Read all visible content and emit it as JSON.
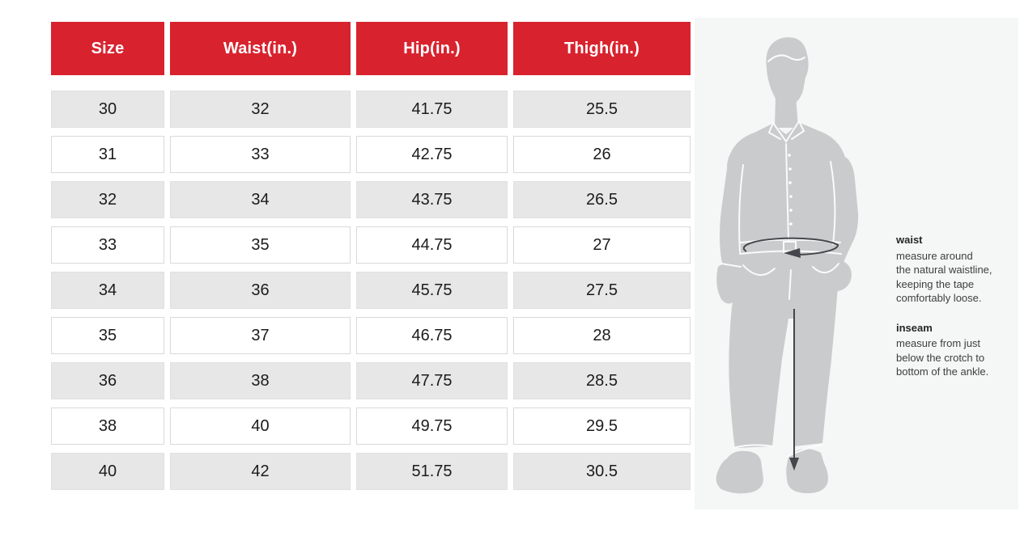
{
  "table": {
    "headers": [
      "Size",
      "Waist(in.)",
      "Hip(in.)",
      "Thigh(in.)"
    ],
    "rows": [
      [
        "30",
        "32",
        "41.75",
        "25.5"
      ],
      [
        "31",
        "33",
        "42.75",
        "26"
      ],
      [
        "32",
        "34",
        "43.75",
        "26.5"
      ],
      [
        "33",
        "35",
        "44.75",
        "27"
      ],
      [
        "34",
        "36",
        "45.75",
        "27.5"
      ],
      [
        "35",
        "37",
        "46.75",
        "28"
      ],
      [
        "36",
        "38",
        "47.75",
        "28.5"
      ],
      [
        "38",
        "40",
        "49.75",
        "29.5"
      ],
      [
        "40",
        "42",
        "51.75",
        "30.5"
      ]
    ]
  },
  "guide": {
    "waist_label": "waist",
    "waist_description": "measure around\nthe natural waistline,\nkeeping the tape\ncomfortably loose.",
    "inseam_label": "inseam",
    "inseam_description": "measure from just\nbelow the crotch to\nbottom of the ankle.",
    "figure": "male-body-silhouette"
  },
  "colors": {
    "header_bg": "#d8232f",
    "row_alt_bg": "#e7e7e7",
    "panel_bg": "#f5f6f6",
    "silhouette": "#c9cbcc",
    "arrow": "#43464a"
  }
}
